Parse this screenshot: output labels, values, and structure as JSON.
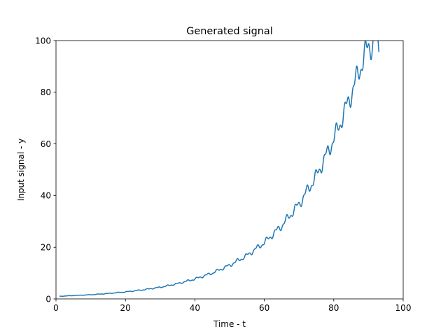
{
  "chart_data": {
    "type": "line",
    "title": "Generated signal",
    "xlabel": "Time - t",
    "ylabel": "Input signal - y",
    "xlim": [
      0,
      100
    ],
    "ylim": [
      0,
      100
    ],
    "xticks": [
      "0",
      "20",
      "40",
      "60",
      "80",
      "100"
    ],
    "yticks": [
      "0",
      "20",
      "40",
      "60",
      "80",
      "100"
    ],
    "grid": false,
    "legend": "none",
    "series": [
      {
        "color": "#1f77b4",
        "x": [
          1,
          5,
          10,
          15,
          20,
          25,
          30,
          35,
          40,
          45,
          50,
          55,
          60,
          65,
          70,
          75,
          80,
          83,
          86,
          88,
          90,
          92,
          93
        ],
        "y": [
          1.0,
          1.3,
          1.6,
          2.1,
          2.7,
          3.5,
          4.5,
          5.9,
          7.7,
          10.0,
          13.0,
          16.8,
          21.8,
          28.3,
          36.7,
          47.6,
          61.8,
          72.0,
          83.0,
          91.0,
          98.0,
          99.0,
          98.5
        ],
        "oscillation_amplitude_ratio": 0.06
      }
    ]
  }
}
